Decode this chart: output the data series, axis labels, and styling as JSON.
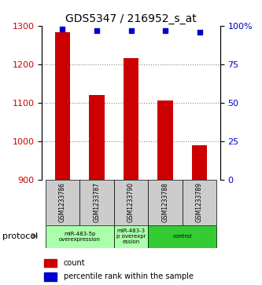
{
  "title": "GDS5347 / 216952_s_at",
  "samples": [
    "GSM1233786",
    "GSM1233787",
    "GSM1233790",
    "GSM1233788",
    "GSM1233789"
  ],
  "counts": [
    1283,
    1120,
    1215,
    1105,
    990
  ],
  "percentiles": [
    98,
    97,
    97,
    97,
    96
  ],
  "ylim_left": [
    900,
    1300
  ],
  "ylim_right": [
    0,
    100
  ],
  "yticks_left": [
    900,
    1000,
    1100,
    1200,
    1300
  ],
  "yticks_right": [
    0,
    25,
    50,
    75,
    100
  ],
  "bar_color": "#cc0000",
  "dot_color": "#0000cc",
  "grid_color": "#888888",
  "bg_color": "#ffffff",
  "groups": [
    {
      "label": "miR-483-5p\noverexpression",
      "start": 0,
      "end": 1,
      "color": "#aaffaa"
    },
    {
      "label": "miR-483-3\np overexpr\nession",
      "start": 2,
      "end": 2,
      "color": "#aaffaa"
    },
    {
      "label": "control",
      "start": 3,
      "end": 4,
      "color": "#33cc33"
    }
  ],
  "protocol_label": "protocol",
  "legend_count_label": "count",
  "legend_percentile_label": "percentile rank within the sample"
}
